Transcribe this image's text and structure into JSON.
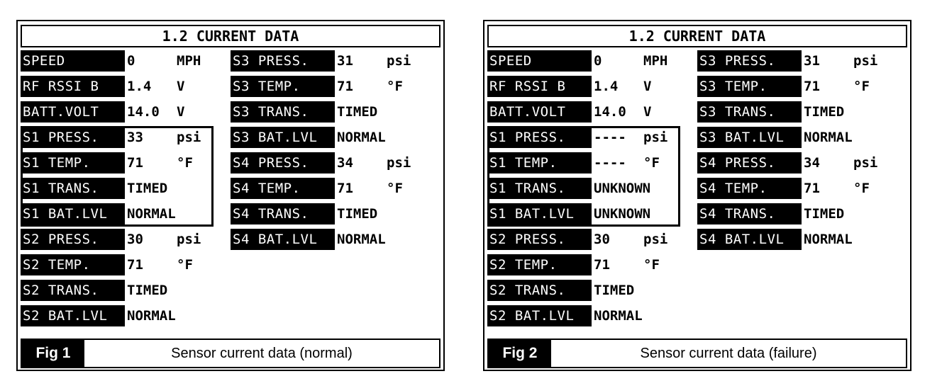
{
  "panels": [
    {
      "title": "1.2 CURRENT DATA",
      "fig": "Fig 1",
      "caption": "Sensor current data (normal)",
      "left": [
        {
          "label": "SPEED",
          "value": "0",
          "unit": "MPH"
        },
        {
          "label": "RF RSSI B",
          "value": "1.4",
          "unit": "V"
        },
        {
          "label": "BATT.VOLT",
          "value": "14.0",
          "unit": "V"
        },
        {
          "label": "S1 PRESS.",
          "value": "33",
          "unit": "psi"
        },
        {
          "label": "S1 TEMP.",
          "value": "71",
          "unit": "°F"
        },
        {
          "label": "S1 TRANS.",
          "value": "TIMED",
          "unit": ""
        },
        {
          "label": "S1 BAT.LVL",
          "value": "NORMAL",
          "unit": ""
        },
        {
          "label": "S2 PRESS.",
          "value": "30",
          "unit": "psi"
        },
        {
          "label": "S2 TEMP.",
          "value": "71",
          "unit": "°F"
        },
        {
          "label": "S2 TRANS.",
          "value": "TIMED",
          "unit": ""
        },
        {
          "label": "S2 BAT.LVL",
          "value": "NORMAL",
          "unit": ""
        }
      ],
      "right": [
        {
          "label": "S3 PRESS.",
          "value": "31",
          "unit": "psi"
        },
        {
          "label": "S3 TEMP.",
          "value": "71",
          "unit": "°F"
        },
        {
          "label": "S3 TRANS.",
          "value": "TIMED",
          "unit": ""
        },
        {
          "label": "S3 BAT.LVL",
          "value": "NORMAL",
          "unit": ""
        },
        {
          "label": "S4 PRESS.",
          "value": "34",
          "unit": "psi"
        },
        {
          "label": "S4 TEMP.",
          "value": "71",
          "unit": "°F"
        },
        {
          "label": "S4 TRANS.",
          "value": "TIMED",
          "unit": ""
        },
        {
          "label": "S4 BAT.LVL",
          "value": "NORMAL",
          "unit": ""
        }
      ]
    },
    {
      "title": "1.2 CURRENT DATA",
      "fig": "Fig 2",
      "caption": "Sensor current data (failure)",
      "left": [
        {
          "label": "SPEED",
          "value": "0",
          "unit": "MPH"
        },
        {
          "label": "RF RSSI B",
          "value": "1.4",
          "unit": "V"
        },
        {
          "label": "BATT.VOLT",
          "value": "14.0",
          "unit": "V"
        },
        {
          "label": "S1 PRESS.",
          "value": "----",
          "unit": "psi"
        },
        {
          "label": "S1 TEMP.",
          "value": "----",
          "unit": "°F"
        },
        {
          "label": "S1 TRANS.",
          "value": "UNKNOWN",
          "unit": ""
        },
        {
          "label": "S1 BAT.LVL",
          "value": "UNKNOWN",
          "unit": ""
        },
        {
          "label": "S2 PRESS.",
          "value": "30",
          "unit": "psi"
        },
        {
          "label": "S2 TEMP.",
          "value": "71",
          "unit": "°F"
        },
        {
          "label": "S2 TRANS.",
          "value": "TIMED",
          "unit": ""
        },
        {
          "label": "S2 BAT.LVL",
          "value": "NORMAL",
          "unit": ""
        }
      ],
      "right": [
        {
          "label": "S3 PRESS.",
          "value": "31",
          "unit": "psi"
        },
        {
          "label": "S3 TEMP.",
          "value": "71",
          "unit": "°F"
        },
        {
          "label": "S3 TRANS.",
          "value": "TIMED",
          "unit": ""
        },
        {
          "label": "S3 BAT.LVL",
          "value": "NORMAL",
          "unit": ""
        },
        {
          "label": "S4 PRESS.",
          "value": "34",
          "unit": "psi"
        },
        {
          "label": "S4 TEMP.",
          "value": "71",
          "unit": "°F"
        },
        {
          "label": "S4 TRANS.",
          "value": "TIMED",
          "unit": ""
        },
        {
          "label": "S4 BAT.LVL",
          "value": "NORMAL",
          "unit": ""
        }
      ]
    }
  ]
}
